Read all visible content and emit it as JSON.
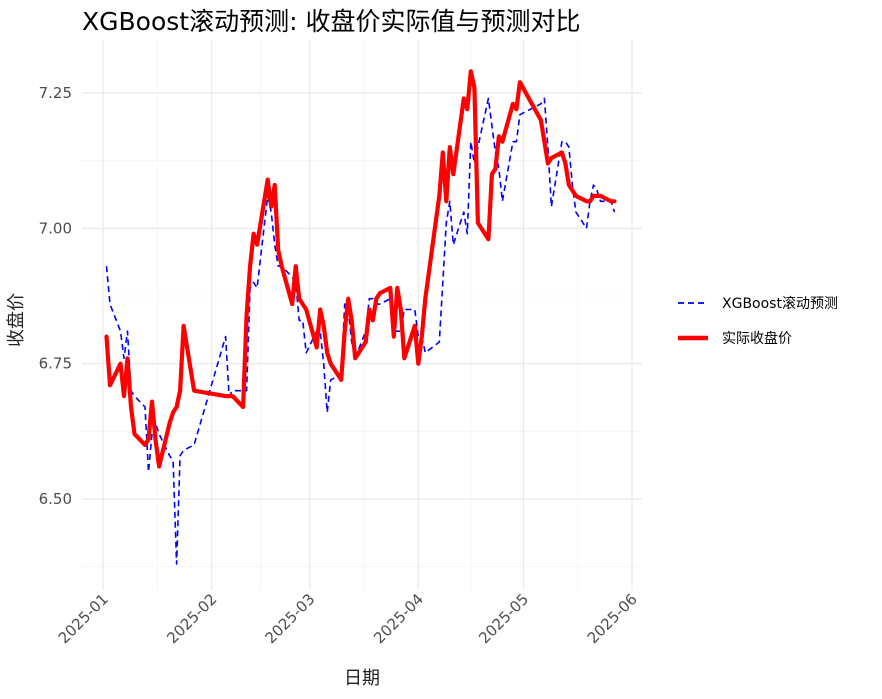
{
  "chart_data": {
    "type": "line",
    "title": "XGBoost滚动预测: 收盘价实际值与预测对比",
    "xlabel": "日期",
    "ylabel": "收盘价",
    "xlim": [
      "2025-01-01",
      "2025-06-01"
    ],
    "ylim": [
      6.36,
      7.3
    ],
    "x_ticks": [
      "2025-01-01",
      "2025-02-01",
      "2025-03-01",
      "2025-04-01",
      "2025-05-01",
      "2025-06-01"
    ],
    "x_tick_labels": [
      "2025-01",
      "2025-02",
      "2025-03",
      "2025-04",
      "2025-05",
      "2025-06"
    ],
    "y_ticks": [
      6.5,
      6.75,
      7.0,
      7.25
    ],
    "y_tick_labels": [
      "6.50",
      "6.75",
      "7.00",
      "7.25"
    ],
    "grid": true,
    "legend_position": "right",
    "series": [
      {
        "name": "XGBoost滚动预测",
        "color": "#0000ff",
        "style": "dashed",
        "x": [
          "2025-01-02",
          "2025-01-03",
          "2025-01-06",
          "2025-01-07",
          "2025-01-08",
          "2025-01-09",
          "2025-01-10",
          "2025-01-13",
          "2025-01-14",
          "2025-01-15",
          "2025-01-16",
          "2025-01-17",
          "2025-01-20",
          "2025-01-21",
          "2025-01-22",
          "2025-01-23",
          "2025-01-24",
          "2025-01-27",
          "2025-02-05",
          "2025-02-06",
          "2025-02-07",
          "2025-02-10",
          "2025-02-11",
          "2025-02-12",
          "2025-02-13",
          "2025-02-14",
          "2025-02-17",
          "2025-02-18",
          "2025-02-19",
          "2025-02-20",
          "2025-02-21",
          "2025-02-24",
          "2025-02-25",
          "2025-02-26",
          "2025-02-27",
          "2025-02-28",
          "2025-03-03",
          "2025-03-04",
          "2025-03-05",
          "2025-03-06",
          "2025-03-07",
          "2025-03-10",
          "2025-03-11",
          "2025-03-12",
          "2025-03-13",
          "2025-03-14",
          "2025-03-17",
          "2025-03-18",
          "2025-03-19",
          "2025-03-20",
          "2025-03-21",
          "2025-03-24",
          "2025-03-25",
          "2025-03-26",
          "2025-03-27",
          "2025-03-28",
          "2025-03-31",
          "2025-04-01",
          "2025-04-02",
          "2025-04-03",
          "2025-04-07",
          "2025-04-08",
          "2025-04-09",
          "2025-04-10",
          "2025-04-11",
          "2025-04-14",
          "2025-04-15",
          "2025-04-16",
          "2025-04-17",
          "2025-04-18",
          "2025-04-21",
          "2025-04-22",
          "2025-04-23",
          "2025-04-24",
          "2025-04-25",
          "2025-04-28",
          "2025-04-29",
          "2025-04-30",
          "2025-05-06",
          "2025-05-07",
          "2025-05-08",
          "2025-05-09",
          "2025-05-12",
          "2025-05-13",
          "2025-05-14",
          "2025-05-15",
          "2025-05-16",
          "2025-05-19",
          "2025-05-20",
          "2025-05-21",
          "2025-05-22",
          "2025-05-23",
          "2025-05-26",
          "2025-05-27"
        ],
        "y": [
          6.93,
          6.86,
          6.81,
          6.76,
          6.81,
          6.7,
          6.69,
          6.67,
          6.55,
          6.62,
          6.64,
          6.62,
          6.58,
          6.57,
          6.38,
          6.58,
          6.59,
          6.6,
          6.8,
          6.69,
          6.7,
          6.7,
          6.7,
          6.89,
          6.9,
          6.89,
          7.06,
          7.03,
          6.97,
          6.93,
          6.93,
          6.91,
          6.9,
          6.83,
          6.83,
          6.77,
          6.81,
          6.81,
          6.75,
          6.66,
          6.72,
          6.73,
          6.86,
          6.85,
          6.79,
          6.76,
          6.81,
          6.87,
          6.87,
          6.86,
          6.86,
          6.87,
          6.81,
          6.81,
          6.81,
          6.85,
          6.85,
          6.8,
          6.8,
          6.77,
          6.79,
          6.9,
          7.01,
          7.05,
          6.97,
          7.03,
          6.99,
          7.16,
          7.12,
          7.15,
          7.24,
          7.19,
          7.14,
          7.11,
          7.05,
          7.16,
          7.16,
          7.21,
          7.23,
          7.24,
          7.15,
          7.04,
          7.16,
          7.16,
          7.15,
          7.08,
          7.03,
          7.0,
          7.05,
          7.08,
          7.07,
          7.05,
          7.05,
          7.03
        ]
      },
      {
        "name": "实际收盘价",
        "color": "#ff0000",
        "style": "solid",
        "x": [
          "2025-01-02",
          "2025-01-03",
          "2025-01-06",
          "2025-01-07",
          "2025-01-08",
          "2025-01-09",
          "2025-01-10",
          "2025-01-13",
          "2025-01-14",
          "2025-01-15",
          "2025-01-16",
          "2025-01-17",
          "2025-01-20",
          "2025-01-21",
          "2025-01-22",
          "2025-01-23",
          "2025-01-24",
          "2025-01-27",
          "2025-02-05",
          "2025-02-06",
          "2025-02-07",
          "2025-02-10",
          "2025-02-11",
          "2025-02-12",
          "2025-02-13",
          "2025-02-14",
          "2025-02-17",
          "2025-02-18",
          "2025-02-19",
          "2025-02-20",
          "2025-02-21",
          "2025-02-24",
          "2025-02-25",
          "2025-02-26",
          "2025-02-27",
          "2025-02-28",
          "2025-03-03",
          "2025-03-04",
          "2025-03-05",
          "2025-03-06",
          "2025-03-07",
          "2025-03-10",
          "2025-03-11",
          "2025-03-12",
          "2025-03-13",
          "2025-03-14",
          "2025-03-17",
          "2025-03-18",
          "2025-03-19",
          "2025-03-20",
          "2025-03-21",
          "2025-03-24",
          "2025-03-25",
          "2025-03-26",
          "2025-03-27",
          "2025-03-28",
          "2025-03-31",
          "2025-04-01",
          "2025-04-02",
          "2025-04-03",
          "2025-04-07",
          "2025-04-08",
          "2025-04-09",
          "2025-04-10",
          "2025-04-11",
          "2025-04-14",
          "2025-04-15",
          "2025-04-16",
          "2025-04-17",
          "2025-04-18",
          "2025-04-21",
          "2025-04-22",
          "2025-04-23",
          "2025-04-24",
          "2025-04-25",
          "2025-04-28",
          "2025-04-29",
          "2025-04-30",
          "2025-05-06",
          "2025-05-07",
          "2025-05-08",
          "2025-05-09",
          "2025-05-12",
          "2025-05-13",
          "2025-05-14",
          "2025-05-15",
          "2025-05-16",
          "2025-05-19",
          "2025-05-20",
          "2025-05-21",
          "2025-05-22",
          "2025-05-23",
          "2025-05-26",
          "2025-05-27"
        ],
        "y": [
          6.8,
          6.71,
          6.75,
          6.69,
          6.76,
          6.67,
          6.62,
          6.6,
          6.61,
          6.68,
          6.61,
          6.56,
          6.64,
          6.66,
          6.67,
          6.7,
          6.82,
          6.7,
          6.69,
          6.69,
          6.69,
          6.67,
          6.84,
          6.93,
          6.99,
          6.97,
          7.09,
          7.04,
          7.08,
          6.96,
          6.93,
          6.86,
          6.93,
          6.87,
          6.86,
          6.85,
          6.78,
          6.85,
          6.82,
          6.77,
          6.75,
          6.72,
          6.81,
          6.87,
          6.83,
          6.76,
          6.79,
          6.85,
          6.83,
          6.87,
          6.88,
          6.89,
          6.8,
          6.89,
          6.85,
          6.76,
          6.82,
          6.75,
          6.8,
          6.87,
          7.06,
          7.14,
          7.05,
          7.15,
          7.1,
          7.24,
          7.22,
          7.29,
          7.26,
          7.01,
          6.98,
          7.1,
          7.11,
          7.17,
          7.16,
          7.23,
          7.22,
          7.27,
          7.2,
          7.16,
          7.12,
          7.13,
          7.14,
          7.12,
          7.08,
          7.07,
          7.06,
          7.05,
          7.05,
          7.06,
          7.06,
          7.06,
          7.05,
          7.05
        ]
      }
    ]
  }
}
